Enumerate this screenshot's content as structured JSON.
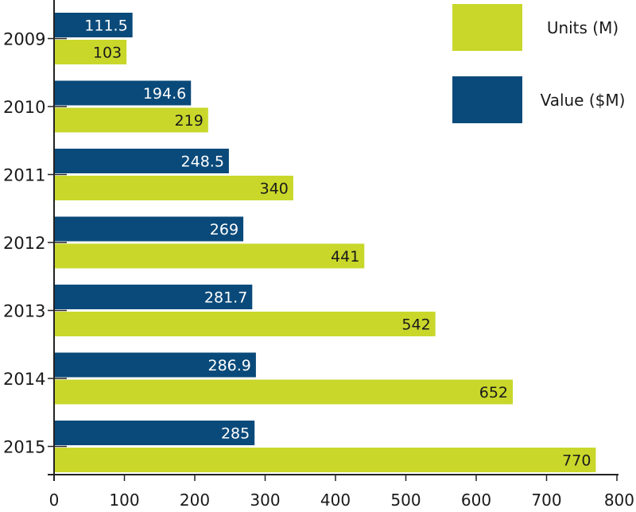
{
  "chart_data": {
    "type": "bar",
    "orientation": "horizontal",
    "categories": [
      "2009",
      "2010",
      "2011",
      "2012",
      "2013",
      "2014",
      "2015"
    ],
    "series": [
      {
        "name": "Value ($M)",
        "color": "#0a4a7a",
        "values": [
          111.5,
          194.6,
          248.5,
          269,
          281.7,
          286.9,
          285
        ],
        "labels": [
          "111.5",
          "194.6",
          "248.5",
          "269",
          "281.7",
          "286.9",
          "285"
        ]
      },
      {
        "name": "Units (M)",
        "color": "#c9d72b",
        "values": [
          103,
          219,
          340,
          441,
          542,
          652,
          770
        ],
        "labels": [
          "103",
          "219",
          "340",
          "441",
          "542",
          "652",
          "770"
        ]
      }
    ],
    "xlim": [
      0,
      800
    ],
    "xticks": [
      "0",
      "100",
      "200",
      "300",
      "400",
      "500",
      "600",
      "700",
      "800"
    ],
    "grid": false,
    "legend_position": "top-right",
    "legend_order": [
      "Units (M)",
      "Value ($M)"
    ]
  }
}
